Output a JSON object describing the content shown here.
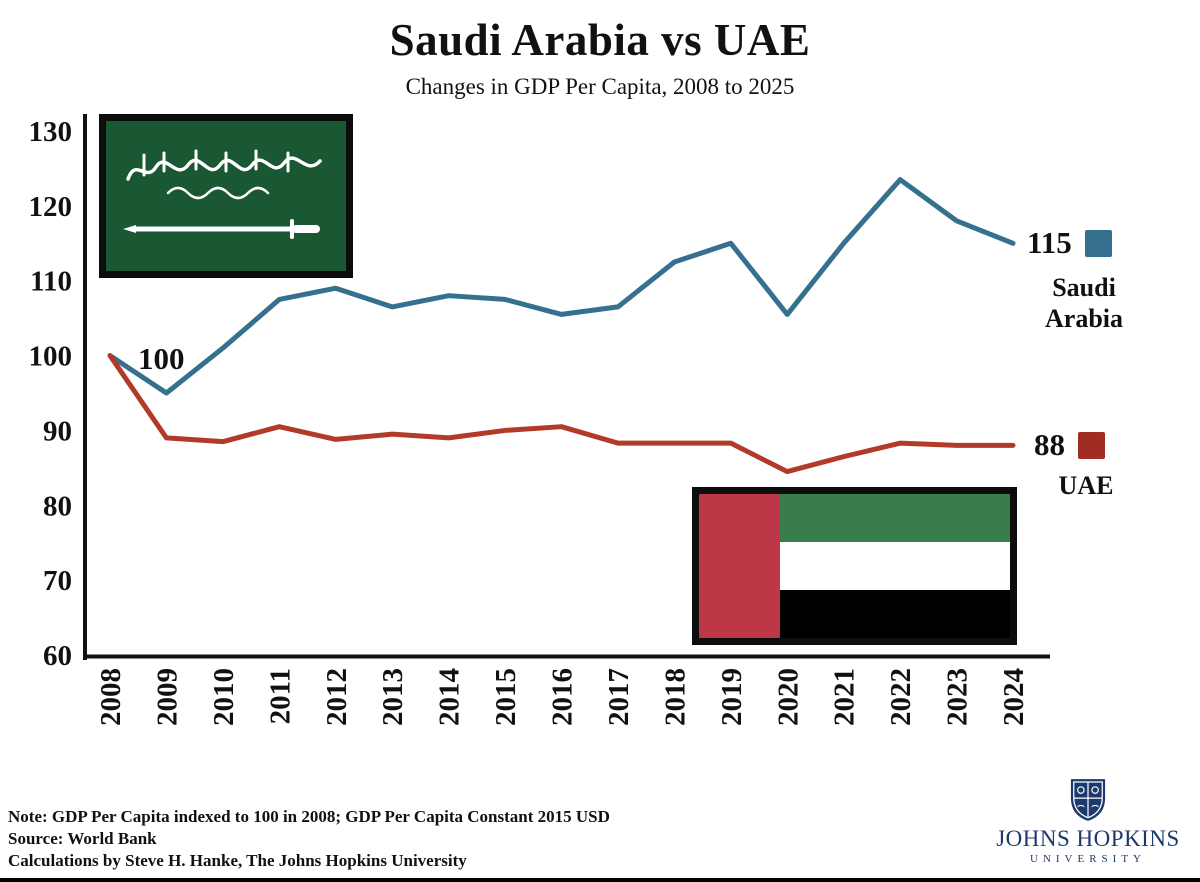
{
  "title": "Saudi Arabia vs UAE",
  "subtitle": "Changes in GDP Per Capita, 2008 to 2025",
  "chart_data": {
    "type": "line",
    "x": [
      "2008",
      "2009",
      "2010",
      "2011",
      "2012",
      "2013",
      "2014",
      "2015",
      "2016",
      "2017",
      "2018",
      "2019",
      "2020",
      "2021",
      "2022",
      "2023",
      "2024"
    ],
    "series": [
      {
        "name": "Saudi Arabia",
        "color": "#35708F",
        "values": [
          100,
          95,
          101,
          107.5,
          109,
          106.5,
          108,
          107.5,
          105.5,
          106.5,
          112.5,
          115,
          105.5,
          115,
          123.5,
          118,
          115
        ]
      },
      {
        "name": "UAE",
        "color": "#B23A28",
        "values": [
          100,
          89,
          88.5,
          90.5,
          88.8,
          89.5,
          89,
          90,
          90.5,
          88.3,
          88.3,
          88.3,
          84.5,
          86.5,
          88.3,
          88,
          88
        ]
      }
    ],
    "ylim": [
      60,
      130
    ],
    "yticks": [
      60,
      70,
      80,
      90,
      100,
      110,
      120,
      130
    ],
    "grid": false,
    "legend_position": "right",
    "annotations": [
      {
        "text": "100",
        "x": "2008",
        "y": 100
      }
    ]
  },
  "legend": {
    "saudi_value": "115",
    "saudi_name_line1": "Saudi",
    "saudi_name_line2": "Arabia",
    "saudi_color": "#35708F",
    "uae_value": "88",
    "uae_name": "UAE",
    "uae_color": "#A02C24"
  },
  "annotation_start": "100",
  "footer": {
    "note": "Note: GDP Per Capita indexed to 100 in 2008; GDP Per Capita Constant 2015 USD",
    "source": "Source: World Bank",
    "calculations": "Calculations by Steve H. Hanke, The Johns Hopkins University"
  },
  "logo": {
    "line1": "JOHNS HOPKINS",
    "line2": "UNIVERSITY"
  }
}
